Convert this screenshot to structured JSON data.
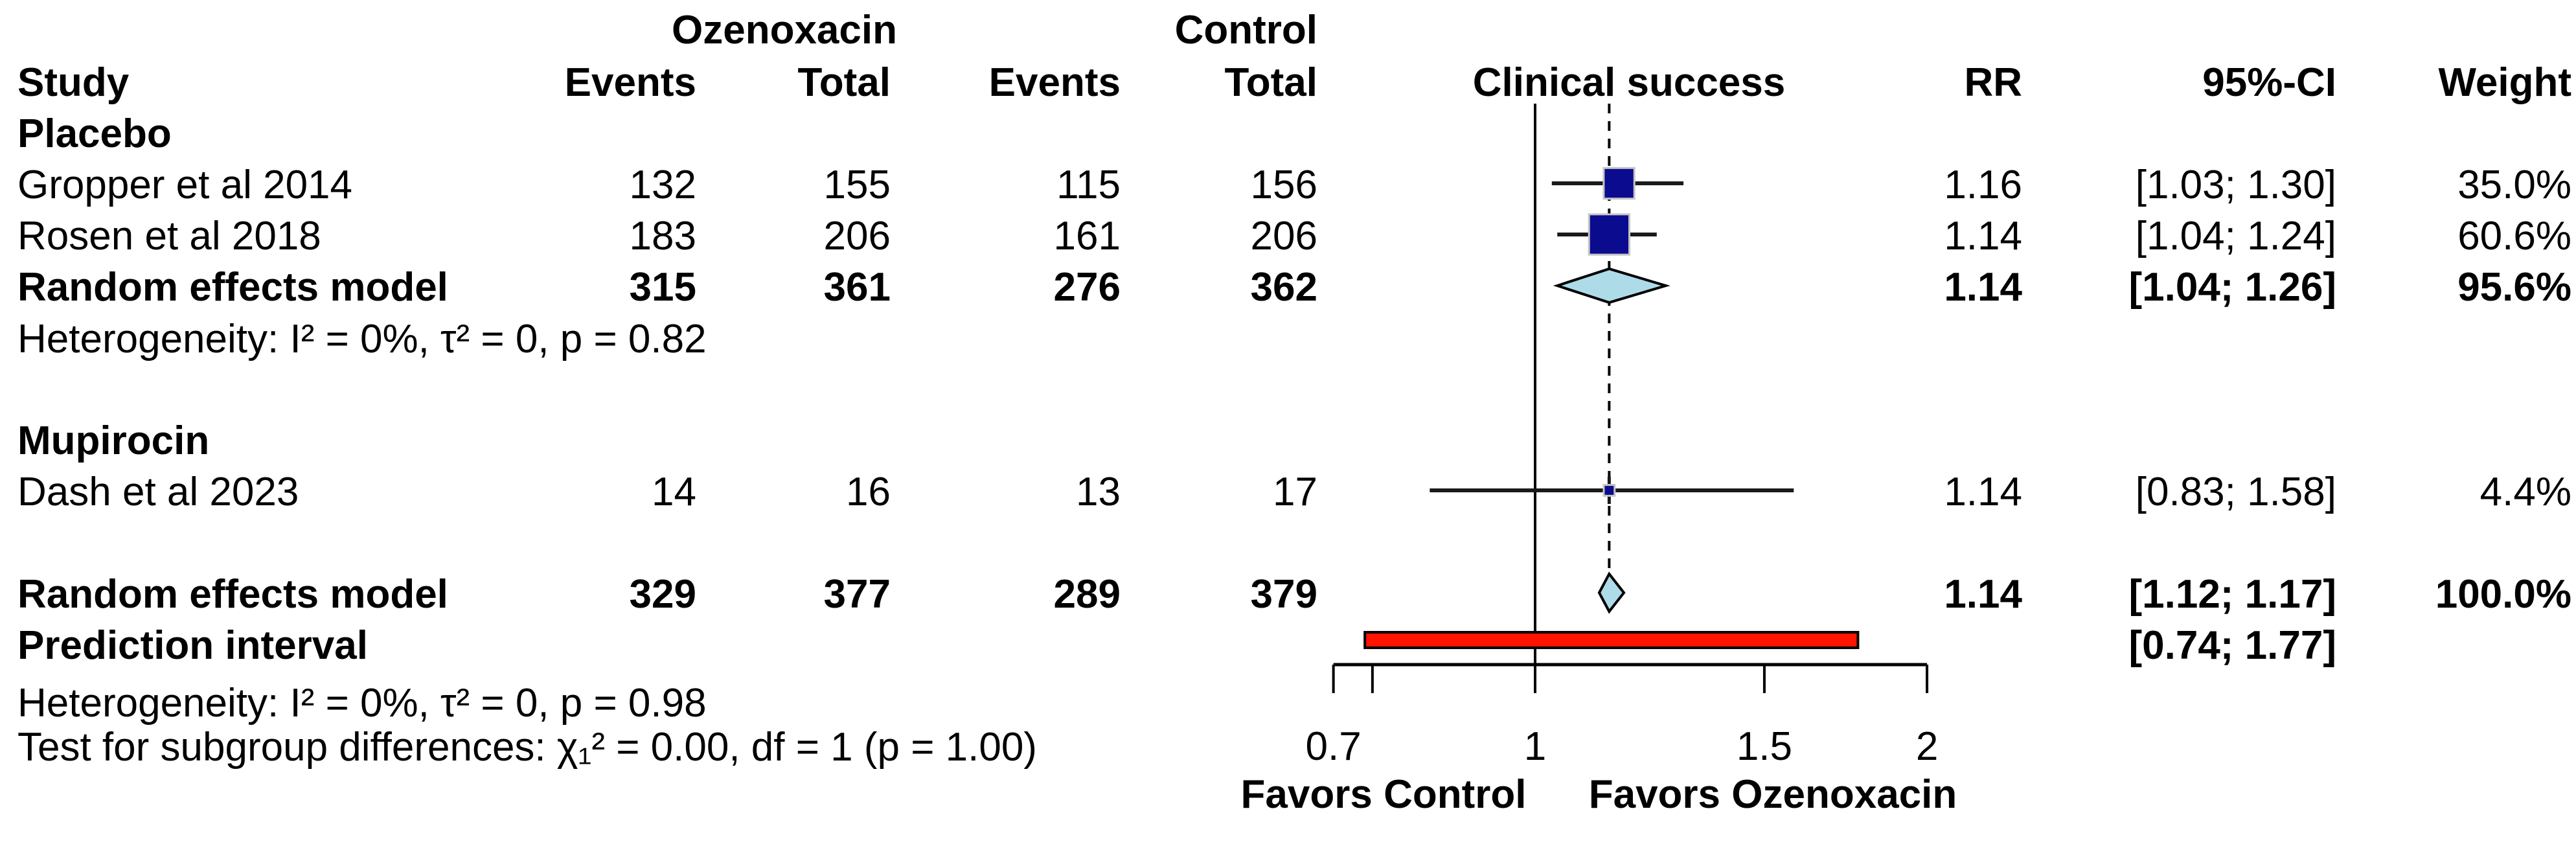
{
  "header": {
    "group1": "Ozenoxacin",
    "group2": "Control",
    "col_study": "Study",
    "col_events": "Events",
    "col_total": "Total",
    "col_events2": "Events",
    "col_total2": "Total",
    "col_plot": "Clinical success",
    "col_rr": "RR",
    "col_ci": "95%-CI",
    "col_weight": "Weight"
  },
  "colors": {
    "square": "#0B0B8F",
    "square_border": "#C6C6C6",
    "diamond": "#AEDBE8",
    "prediction_bar": "#FF1400",
    "line": "#000000",
    "ci_line": "#1A1A1A"
  },
  "chart_data": {
    "type": "forest",
    "title": "Clinical success",
    "effect_measure": "RR",
    "scale": "log",
    "x_axis": {
      "ticks": [
        0.7,
        1,
        1.5,
        2
      ],
      "tick_labels": [
        "0.7",
        "1",
        "1.5",
        "2"
      ],
      "minor_ticks": [
        0.75
      ],
      "range": [
        0.7,
        2
      ],
      "reference_line": 1,
      "overall_line": 1.14,
      "favors_left": "Favors Control",
      "favors_right": "Favors Ozenoxacin"
    },
    "groups": [
      {
        "name": "Placebo",
        "studies": [
          {
            "study": "Gropper et al 2014",
            "oz_events": 132,
            "oz_total": 155,
            "ctrl_events": 115,
            "ctrl_total": 156,
            "rr": 1.16,
            "ci_low": 1.03,
            "ci_high": 1.3,
            "weight": 35.0,
            "rr_label": "1.16",
            "ci_label": "[1.03; 1.30]",
            "weight_label": "35.0%"
          },
          {
            "study": "Rosen et al 2018",
            "oz_events": 183,
            "oz_total": 206,
            "ctrl_events": 161,
            "ctrl_total": 206,
            "rr": 1.14,
            "ci_low": 1.04,
            "ci_high": 1.24,
            "weight": 60.6,
            "rr_label": "1.14",
            "ci_label": "[1.04; 1.24]",
            "weight_label": "60.6%"
          }
        ],
        "summary": {
          "label": "Random effects model",
          "oz_events": 315,
          "oz_total": 361,
          "ctrl_events": 276,
          "ctrl_total": 362,
          "rr": 1.14,
          "ci_low": 1.04,
          "ci_high": 1.26,
          "rr_label": "1.14",
          "ci_label": "[1.04; 1.26]",
          "weight_label": "95.6%"
        },
        "heterogeneity": "Heterogeneity: I² = 0%, τ² = 0, p = 0.82"
      },
      {
        "name": "Mupirocin",
        "studies": [
          {
            "study": "Dash et al 2023",
            "oz_events": 14,
            "oz_total": 16,
            "ctrl_events": 13,
            "ctrl_total": 17,
            "rr": 1.14,
            "ci_low": 0.83,
            "ci_high": 1.58,
            "weight": 4.4,
            "rr_label": "1.14",
            "ci_label": "[0.83; 1.58]",
            "weight_label": "4.4%"
          }
        ]
      }
    ],
    "overall": {
      "label": "Random effects model",
      "oz_events": 329,
      "oz_total": 377,
      "ctrl_events": 289,
      "ctrl_total": 379,
      "rr": 1.14,
      "ci_low": 1.12,
      "ci_high": 1.17,
      "rr_label": "1.14",
      "ci_label": "[1.12; 1.17]",
      "weight_label": "100.0%"
    },
    "prediction": {
      "label": "Prediction interval",
      "ci_low": 0.74,
      "ci_high": 1.77,
      "ci_label": "[0.74; 1.77]"
    },
    "heterogeneity_overall": "Heterogeneity: I² = 0%, τ² = 0, p = 0.98",
    "subgroup_test": "Test for subgroup differences: χ₁² = 0.00, df = 1 (p = 1.00)"
  }
}
